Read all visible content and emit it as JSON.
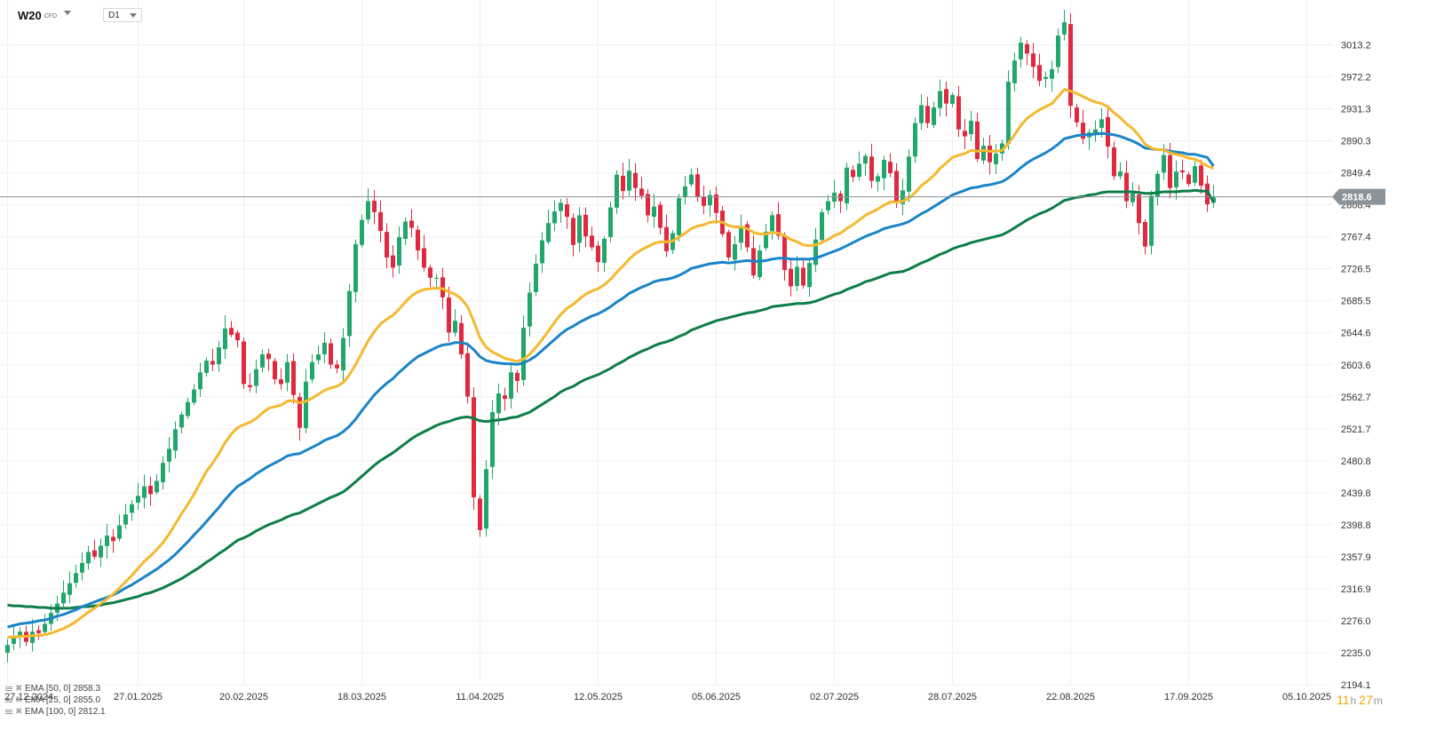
{
  "toolbar": {
    "symbol": "W20",
    "instrument_type": "CFD",
    "timeframe": "D1"
  },
  "timer": {
    "hours": "11",
    "hours_unit": "h",
    "minutes": "27",
    "minutes_unit": "m"
  },
  "legend": [
    {
      "label": "EMA [50, 0] 2858.3",
      "color": "#1a84c7"
    },
    {
      "label": "EMA [25, 0] 2855.0",
      "color": "#f5b82e"
    },
    {
      "label": "EMA [100, 0] 2812.1",
      "color": "#0e7d48"
    }
  ],
  "colors": {
    "up": "#21a66b",
    "down": "#e0283f",
    "ema50": "#1a84c7",
    "ema25": "#f5b82e",
    "ema100": "#0e7d48",
    "price_line": "#8a9399"
  },
  "chart_data": {
    "type": "candlestick",
    "ylim": [
      2194.1,
      3054.1
    ],
    "y_ticks": [
      "3013.2",
      "2972.2",
      "2931.3",
      "2890.3",
      "2849.4",
      "2808.4",
      "2767.4",
      "2726.5",
      "2685.5",
      "2644.6",
      "2603.6",
      "2562.7",
      "2521.7",
      "2480.8",
      "2439.8",
      "2398.8",
      "2357.9",
      "2316.9",
      "2276.0",
      "2235.0",
      "2194.1"
    ],
    "x_ticks": [
      {
        "label": "27.12.2024",
        "i": 0
      },
      {
        "label": "27.01.2025",
        "i": 21
      },
      {
        "label": "20.02.2025",
        "i": 38
      },
      {
        "label": "18.03.2025",
        "i": 57
      },
      {
        "label": "11.04.2025",
        "i": 76
      },
      {
        "label": "12.05.2025",
        "i": 95
      },
      {
        "label": "05.06.2025",
        "i": 114
      },
      {
        "label": "02.07.2025",
        "i": 133
      },
      {
        "label": "28.07.2025",
        "i": 152
      },
      {
        "label": "22.08.2025",
        "i": 171
      },
      {
        "label": "17.09.2025",
        "i": 190
      },
      {
        "label": "05.10.2025",
        "i": 209
      }
    ],
    "current_price": "2818.6",
    "closes": [
      2245,
      2255,
      2262,
      2249,
      2262,
      2260,
      2272,
      2286,
      2298,
      2312,
      2324,
      2337,
      2350,
      2364,
      2358,
      2372,
      2385,
      2378,
      2398,
      2412,
      2425,
      2436,
      2448,
      2438,
      2455,
      2478,
      2496,
      2521,
      2540,
      2556,
      2572,
      2594,
      2609,
      2604,
      2626,
      2650,
      2642,
      2635,
      2579,
      2575,
      2598,
      2617,
      2611,
      2585,
      2579,
      2607,
      2565,
      2523,
      2582,
      2607,
      2617,
      2632,
      2604,
      2599,
      2638,
      2698,
      2758,
      2789,
      2813,
      2799,
      2775,
      2741,
      2728,
      2767,
      2787,
      2779,
      2750,
      2728,
      2715,
      2715,
      2690,
      2645,
      2660,
      2617,
      2563,
      2434,
      2392,
      2470,
      2543,
      2567,
      2560,
      2594,
      2583,
      2651,
      2696,
      2733,
      2763,
      2785,
      2800,
      2811,
      2793,
      2757,
      2795,
      2768,
      2754,
      2735,
      2765,
      2805,
      2847,
      2826,
      2852,
      2830,
      2820,
      2795,
      2806,
      2779,
      2749,
      2772,
      2817,
      2832,
      2847,
      2818,
      2807,
      2821,
      2798,
      2771,
      2741,
      2758,
      2781,
      2754,
      2718,
      2750,
      2774,
      2795,
      2769,
      2725,
      2704,
      2729,
      2705,
      2734,
      2764,
      2799,
      2813,
      2824,
      2813,
      2856,
      2844,
      2861,
      2871,
      2839,
      2845,
      2866,
      2849,
      2812,
      2827,
      2870,
      2913,
      2936,
      2913,
      2933,
      2954,
      2938,
      2949,
      2905,
      2896,
      2916,
      2867,
      2884,
      2863,
      2874,
      2887,
      2966,
      2993,
      3016,
      3002,
      2985,
      2967,
      2972,
      2982,
      3025,
      3042,
      2935,
      2914,
      2893,
      2901,
      2905,
      2918,
      2883,
      2845,
      2851,
      2813,
      2823,
      2785,
      2755,
      2820,
      2848,
      2872,
      2830,
      2851,
      2850,
      2835,
      2858,
      2833,
      2809,
      2818
    ],
    "series": [
      {
        "name": "EMA [50, 0] 2858.3",
        "values": [
          2268,
          2270,
          2272,
          2273,
          2274,
          2276,
          2277,
          2279,
          2282,
          2284,
          2287,
          2290,
          2294,
          2297,
          2300,
          2303,
          2306,
          2309,
          2313,
          2318,
          2322,
          2327,
          2332,
          2337,
          2342,
          2348,
          2354,
          2361,
          2369,
          2377,
          2386,
          2394,
          2403,
          2412,
          2421,
          2431,
          2440,
          2448,
          2453,
          2458,
          2464,
          2469,
          2474,
          2478,
          2482,
          2487,
          2489,
          2490,
          2494,
          2498,
          2502,
          2507,
          2510,
          2513,
          2518,
          2525,
          2534,
          2545,
          2555,
          2565,
          2573,
          2580,
          2586,
          2594,
          2601,
          2608,
          2614,
          2618,
          2622,
          2626,
          2629,
          2630,
          2632,
          2632,
          2630,
          2623,
          2614,
          2609,
          2607,
          2606,
          2605,
          2605,
          2604,
          2606,
          2610,
          2615,
          2622,
          2629,
          2636,
          2643,
          2649,
          2653,
          2658,
          2662,
          2666,
          2669,
          2673,
          2678,
          2684,
          2689,
          2695,
          2699,
          2703,
          2706,
          2710,
          2712,
          2713,
          2715,
          2718,
          2722,
          2727,
          2729,
          2731,
          2733,
          2734,
          2735,
          2734,
          2735,
          2736,
          2737,
          2736,
          2736,
          2737,
          2739,
          2740,
          2740,
          2739,
          2739,
          2739,
          2739,
          2740,
          2743,
          2746,
          2749,
          2752,
          2756,
          2760,
          2764,
          2768,
          2771,
          2774,
          2778,
          2780,
          2782,
          2784,
          2787,
          2792,
          2797,
          2801,
          2806,
          2811,
          2816,
          2821,
          2824,
          2827,
          2830,
          2831,
          2833,
          2834,
          2836,
          2838,
          2843,
          2849,
          2856,
          2862,
          2867,
          2871,
          2875,
          2880,
          2886,
          2893,
          2895,
          2897,
          2898,
          2898,
          2899,
          2900,
          2899,
          2898,
          2896,
          2893,
          2890,
          2886,
          2881,
          2880,
          2879,
          2879,
          2877,
          2876,
          2875,
          2873,
          2873,
          2871,
          2869,
          2858
        ]
      },
      {
        "name": "EMA [25, 0] 2855.0",
        "values": [
          2255,
          2255,
          2256,
          2256,
          2257,
          2257,
          2258,
          2260,
          2263,
          2266,
          2270,
          2275,
          2281,
          2287,
          2292,
          2298,
          2304,
          2310,
          2318,
          2326,
          2334,
          2343,
          2352,
          2359,
          2367,
          2376,
          2387,
          2400,
          2413,
          2425,
          2438,
          2453,
          2467,
          2478,
          2490,
          2504,
          2515,
          2523,
          2527,
          2530,
          2535,
          2542,
          2548,
          2550,
          2552,
          2557,
          2558,
          2555,
          2557,
          2561,
          2566,
          2571,
          2574,
          2576,
          2581,
          2591,
          2604,
          2619,
          2634,
          2646,
          2656,
          2662,
          2667,
          2675,
          2684,
          2692,
          2697,
          2700,
          2701,
          2702,
          2701,
          2697,
          2694,
          2688,
          2678,
          2659,
          2638,
          2626,
          2620,
          2616,
          2612,
          2610,
          2608,
          2611,
          2617,
          2626,
          2636,
          2647,
          2658,
          2668,
          2676,
          2681,
          2688,
          2694,
          2698,
          2701,
          2706,
          2713,
          2722,
          2730,
          2739,
          2746,
          2751,
          2755,
          2759,
          2761,
          2761,
          2762,
          2767,
          2772,
          2778,
          2781,
          2783,
          2786,
          2787,
          2786,
          2782,
          2780,
          2780,
          2778,
          2773,
          2771,
          2771,
          2773,
          2772,
          2769,
          2764,
          2761,
          2757,
          2756,
          2757,
          2760,
          2764,
          2769,
          2772,
          2778,
          2783,
          2789,
          2795,
          2799,
          2803,
          2808,
          2812,
          2812,
          2813,
          2817,
          2824,
          2833,
          2839,
          2846,
          2855,
          2862,
          2869,
          2872,
          2874,
          2878,
          2877,
          2878,
          2877,
          2877,
          2878,
          2887,
          2898,
          2910,
          2919,
          2925,
          2930,
          2934,
          2938,
          2947,
          2956,
          2954,
          2951,
          2947,
          2943,
          2940,
          2938,
          2934,
          2926,
          2920,
          2912,
          2906,
          2897,
          2886,
          2881,
          2879,
          2879,
          2875,
          2873,
          2871,
          2868,
          2867,
          2863,
          2858,
          2855
        ]
      },
      {
        "name": "EMA [100, 0] 2812.1",
        "values": [
          2296,
          2295,
          2295,
          2294,
          2294,
          2293,
          2293,
          2292,
          2292,
          2292,
          2292,
          2293,
          2294,
          2294,
          2295,
          2296,
          2298,
          2299,
          2301,
          2303,
          2305,
          2307,
          2310,
          2312,
          2315,
          2318,
          2322,
          2326,
          2330,
          2335,
          2340,
          2345,
          2351,
          2356,
          2362,
          2367,
          2373,
          2379,
          2382,
          2386,
          2391,
          2395,
          2399,
          2402,
          2405,
          2409,
          2412,
          2414,
          2418,
          2422,
          2426,
          2430,
          2434,
          2437,
          2441,
          2447,
          2454,
          2461,
          2468,
          2475,
          2481,
          2486,
          2491,
          2497,
          2503,
          2509,
          2514,
          2518,
          2522,
          2526,
          2529,
          2531,
          2534,
          2536,
          2537,
          2535,
          2532,
          2531,
          2532,
          2533,
          2534,
          2536,
          2537,
          2540,
          2543,
          2548,
          2553,
          2558,
          2563,
          2569,
          2573,
          2576,
          2581,
          2585,
          2588,
          2591,
          2595,
          2599,
          2604,
          2608,
          2613,
          2617,
          2621,
          2624,
          2628,
          2631,
          2633,
          2636,
          2640,
          2643,
          2648,
          2651,
          2654,
          2657,
          2660,
          2662,
          2664,
          2666,
          2668,
          2670,
          2671,
          2673,
          2675,
          2678,
          2679,
          2680,
          2681,
          2682,
          2682,
          2683,
          2685,
          2688,
          2691,
          2694,
          2696,
          2700,
          2703,
          2706,
          2710,
          2712,
          2715,
          2718,
          2721,
          2722,
          2723,
          2726,
          2730,
          2734,
          2737,
          2741,
          2745,
          2748,
          2752,
          2755,
          2757,
          2760,
          2762,
          2764,
          2766,
          2768,
          2770,
          2774,
          2779,
          2784,
          2789,
          2793,
          2797,
          2800,
          2804,
          2809,
          2814,
          2816,
          2818,
          2819,
          2821,
          2822,
          2824,
          2825,
          2825,
          2825,
          2825,
          2825,
          2824,
          2823,
          2823,
          2824,
          2825,
          2825,
          2825,
          2826,
          2826,
          2827,
          2826,
          2826,
          2812
        ]
      }
    ]
  }
}
